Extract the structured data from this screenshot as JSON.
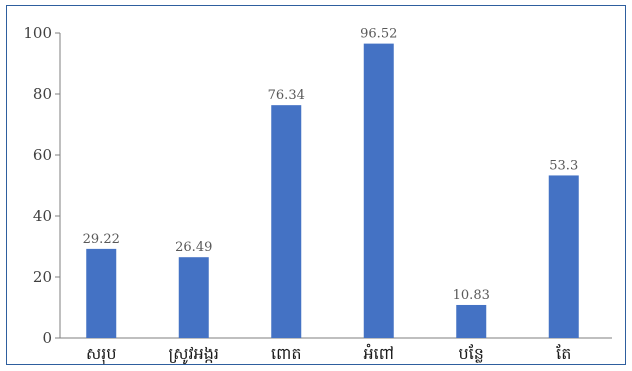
{
  "chart_data": {
    "type": "bar",
    "categories": [
      "សរុប",
      "ស្រូវអង្ករ",
      "ពោត",
      "អំពៅ",
      "បន្លែ",
      "តែ"
    ],
    "values": [
      29.22,
      26.49,
      76.34,
      96.52,
      10.83,
      53.3
    ],
    "data_labels": [
      "29.22",
      "26.49",
      "76.34",
      "96.52",
      "10.83",
      "53.3"
    ],
    "y_ticks": [
      "0",
      "20",
      "40",
      "60",
      "80",
      "100"
    ],
    "ylim": [
      0,
      100
    ],
    "title": "",
    "xlabel": "",
    "ylabel": "",
    "bar_color": "#4472c4",
    "grid": false,
    "legend": false
  }
}
